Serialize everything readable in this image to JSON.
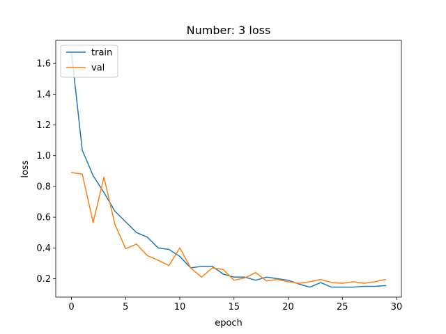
{
  "chart_data": {
    "type": "line",
    "title": "Number: 3 loss",
    "xlabel": "epoch",
    "ylabel": "loss",
    "xlim": [
      -1.45,
      30.45
    ],
    "ylim": [
      0.08,
      1.75
    ],
    "xticks": [
      0,
      5,
      10,
      15,
      20,
      25,
      30
    ],
    "yticks": [
      0.2,
      0.4,
      0.6,
      0.8,
      1.0,
      1.2,
      1.4,
      1.6
    ],
    "ytick_labels": [
      "0.2",
      "0.4",
      "0.6",
      "0.8",
      "1.0",
      "1.2",
      "1.4",
      "1.6"
    ],
    "grid": false,
    "legend_position": "top-left",
    "x": [
      0,
      1,
      2,
      3,
      4,
      5,
      6,
      7,
      8,
      9,
      10,
      11,
      12,
      13,
      14,
      15,
      16,
      17,
      18,
      19,
      20,
      21,
      22,
      23,
      24,
      25,
      26,
      27,
      28,
      29
    ],
    "series": [
      {
        "name": "train",
        "color": "#1f77b4",
        "values": [
          1.67,
          1.035,
          0.87,
          0.76,
          0.64,
          0.57,
          0.5,
          0.47,
          0.4,
          0.39,
          0.345,
          0.27,
          0.28,
          0.28,
          0.23,
          0.21,
          0.21,
          0.19,
          0.21,
          0.2,
          0.19,
          0.165,
          0.145,
          0.175,
          0.145,
          0.145,
          0.145,
          0.15,
          0.15,
          0.155
        ]
      },
      {
        "name": "val",
        "color": "#ff7f0e",
        "values": [
          0.89,
          0.88,
          0.565,
          0.86,
          0.555,
          0.395,
          0.425,
          0.35,
          0.32,
          0.285,
          0.4,
          0.27,
          0.21,
          0.27,
          0.26,
          0.19,
          0.205,
          0.24,
          0.185,
          0.195,
          0.18,
          0.17,
          0.18,
          0.195,
          0.175,
          0.17,
          0.18,
          0.17,
          0.18,
          0.195
        ]
      }
    ]
  }
}
